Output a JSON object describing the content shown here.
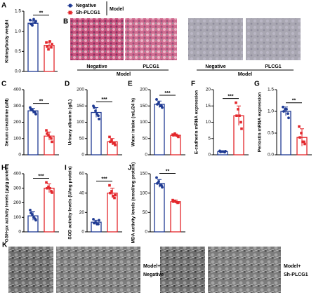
{
  "legend": {
    "items": [
      {
        "name": "Negative",
        "color": "#1f3a93"
      },
      {
        "name": "Sh-PLCG1",
        "color": "#e3262b"
      }
    ],
    "group": "Model"
  },
  "panel_b": {
    "label": "B",
    "groups": [
      {
        "label": "Model",
        "captions": [
          "Negative",
          "PLCG1"
        ]
      },
      {
        "label": "Model",
        "captions": [
          "Negative",
          "PLCG1"
        ]
      }
    ]
  },
  "panel_k": {
    "label": "K",
    "captions": [
      [
        "Model+",
        "Negative"
      ],
      [
        "Model+",
        "Sh-PLCG1"
      ]
    ]
  },
  "chart_data": [
    {
      "panel": "A",
      "type": "bar",
      "ylabel": "Kidney/body weight",
      "values": [
        1.2,
        0.65
      ],
      "errors": [
        0.06,
        0.08
      ],
      "points": [
        [
          1.28,
          1.22,
          1.15,
          1.25,
          1.18,
          1.3
        ],
        [
          0.72,
          0.6,
          0.55,
          0.68,
          0.62,
          0.75
        ]
      ],
      "ylim": [
        0,
        1.5
      ],
      "yticks": [
        {
          "value": 0,
          "label": "0.0"
        },
        0.5,
        {
          "value": 1,
          "label": "1.0"
        },
        1.5
      ],
      "significance": "**"
    },
    {
      "panel": "C",
      "type": "bar",
      "ylabel": "Serum creatinine (uM)",
      "values": [
        270,
        115
      ],
      "errors": [
        15,
        25
      ],
      "points": [
        [
          290,
          260,
          275,
          250,
          280,
          265
        ],
        [
          150,
          100,
          120,
          80,
          130,
          110
        ]
      ],
      "ylim": [
        0,
        400
      ],
      "yticks": [
        0,
        100,
        200,
        300,
        400
      ],
      "significance": "**"
    },
    {
      "panel": "D",
      "type": "bar",
      "ylabel": "Urinary albumin (g/L)",
      "values": [
        130,
        40
      ],
      "errors": [
        15,
        10
      ],
      "points": [
        [
          150,
          120,
          135,
          110,
          145,
          125
        ],
        [
          55,
          35,
          45,
          30,
          40,
          35
        ]
      ],
      "ylim": [
        0,
        200
      ],
      "yticks": [
        0,
        50,
        100,
        150,
        200
      ],
      "significance": "***"
    },
    {
      "panel": "E",
      "type": "bar",
      "ylabel": "Water intake (mL/24 h)",
      "values": [
        155,
        60
      ],
      "errors": [
        10,
        4
      ],
      "points": [
        [
          170,
          150,
          160,
          145,
          155,
          150
        ],
        [
          62,
          58,
          65,
          55,
          60,
          60
        ]
      ],
      "ylim": [
        0,
        200
      ],
      "yticks": [
        0,
        50,
        100,
        150,
        200
      ],
      "significance": "***"
    },
    {
      "panel": "F",
      "type": "bar",
      "ylabel": "E-cadherin mRNA expression",
      "values": [
        1,
        12
      ],
      "errors": [
        0.2,
        3
      ],
      "points": [
        [
          1.2,
          0.8,
          1,
          1.1,
          0.9,
          1
        ],
        [
          16,
          10,
          14,
          8,
          12,
          12
        ]
      ],
      "ylim": [
        0,
        20
      ],
      "yticks": [
        0,
        5,
        10,
        15,
        20
      ],
      "significance": "***"
    },
    {
      "panel": "G",
      "type": "bar",
      "ylabel": "Periostin mRNA expression",
      "values": [
        1,
        0.4
      ],
      "errors": [
        0.1,
        0.2
      ],
      "points": [
        [
          1.1,
          0.95,
          1.05,
          0.85,
          1,
          1.05
        ],
        [
          0.65,
          0.3,
          0.5,
          0.25,
          0.4,
          0.3
        ]
      ],
      "ylim": [
        0,
        1.5
      ],
      "yticks": [
        {
          "value": 0,
          "label": "0.0"
        },
        0.5,
        {
          "value": 1,
          "label": "1.0"
        },
        1.5
      ],
      "significance": "**"
    },
    {
      "panel": "H",
      "type": "bar",
      "ylabel": "GSH-px activity levels (μg/g protein)",
      "values": [
        110,
        300
      ],
      "errors": [
        30,
        30
      ],
      "points": [
        [
          150,
          90,
          120,
          80,
          130,
          100
        ],
        [
          340,
          280,
          310,
          270,
          300,
          300
        ]
      ],
      "ylim": [
        0,
        400
      ],
      "yticks": [
        0,
        100,
        200,
        300,
        400
      ],
      "significance": "***"
    },
    {
      "panel": "I",
      "type": "bar",
      "ylabel": "SOD activity levels (U/mg protein)",
      "values": [
        10,
        40
      ],
      "errors": [
        2,
        5
      ],
      "points": [
        [
          13,
          8,
          10,
          12,
          9,
          8
        ],
        [
          48,
          35,
          42,
          38,
          40,
          37
        ]
      ],
      "ylim": [
        0,
        60
      ],
      "yticks": [
        0,
        20,
        40,
        60
      ],
      "significance": "***"
    },
    {
      "panel": "J",
      "type": "bar",
      "ylabel": "MDA activity levels (nmol/mg protein)",
      "values": [
        125,
        78
      ],
      "errors": [
        10,
        4
      ],
      "points": [
        [
          140,
          120,
          130,
          115,
          125,
          120
        ],
        [
          82,
          75,
          80,
          76,
          78,
          77
        ]
      ],
      "ylim": [
        0,
        150
      ],
      "yticks": [
        0,
        50,
        100,
        150
      ],
      "significance": "**"
    }
  ]
}
